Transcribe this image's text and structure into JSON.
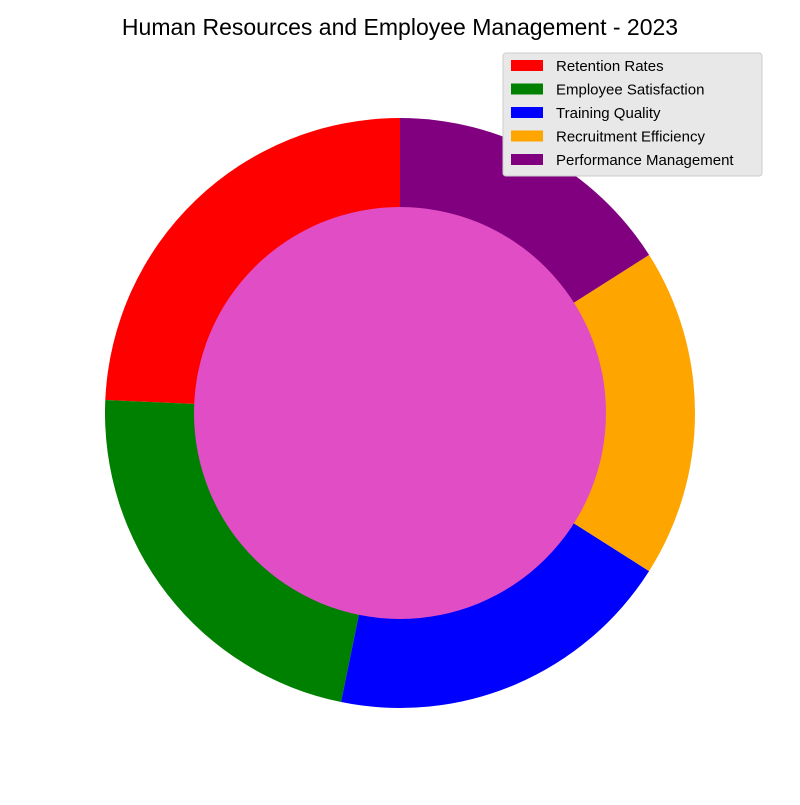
{
  "chart_data": {
    "type": "pie",
    "title": "Human Resources and Employee Management - 2023",
    "categories": [
      "Retention Rates",
      "Employee Satisfaction",
      "Training Quality",
      "Recruitment Efficiency",
      "Performance Management"
    ],
    "values": [
      24.3,
      22.5,
      19.2,
      18.0,
      16.0
    ],
    "colors": [
      "#ff0000",
      "#008000",
      "#0000ff",
      "#ffa500",
      "#800080"
    ],
    "start_angle_deg": 90,
    "direction": "counterclockwise",
    "center_color": "#e04dc4",
    "legend": {
      "placement": "top-right",
      "background": "#e8e8e8"
    }
  }
}
